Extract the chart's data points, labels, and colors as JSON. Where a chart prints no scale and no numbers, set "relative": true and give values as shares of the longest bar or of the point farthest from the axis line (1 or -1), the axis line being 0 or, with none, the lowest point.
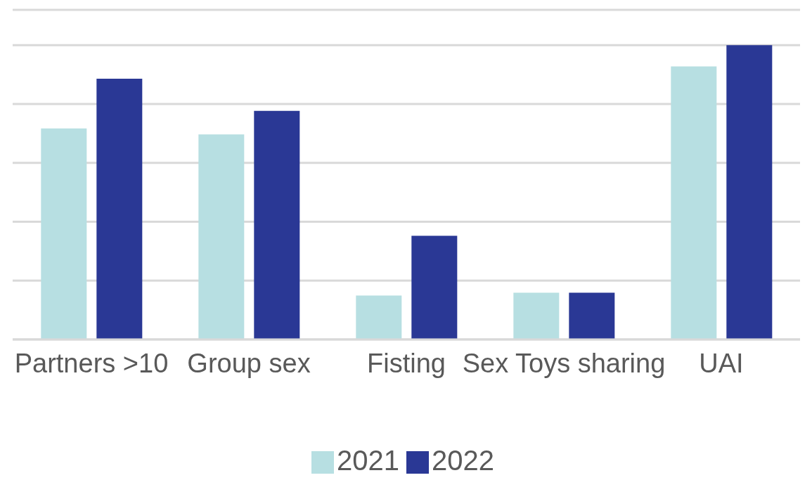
{
  "chart_data": {
    "type": "bar",
    "relative": true,
    "categories": [
      "Partners >10",
      "Group sex",
      "Fisting",
      "Sex Toys sharing",
      "UAI"
    ],
    "series": [
      {
        "name": "2021",
        "color": "#b7dfe2",
        "values": [
          0.717,
          0.697,
          0.149,
          0.159,
          0.928
        ]
      },
      {
        "name": "2022",
        "color": "#2a3895",
        "values": [
          0.886,
          0.777,
          0.352,
          0.159,
          1
        ]
      }
    ],
    "grid": "y",
    "legend": "bottom"
  }
}
